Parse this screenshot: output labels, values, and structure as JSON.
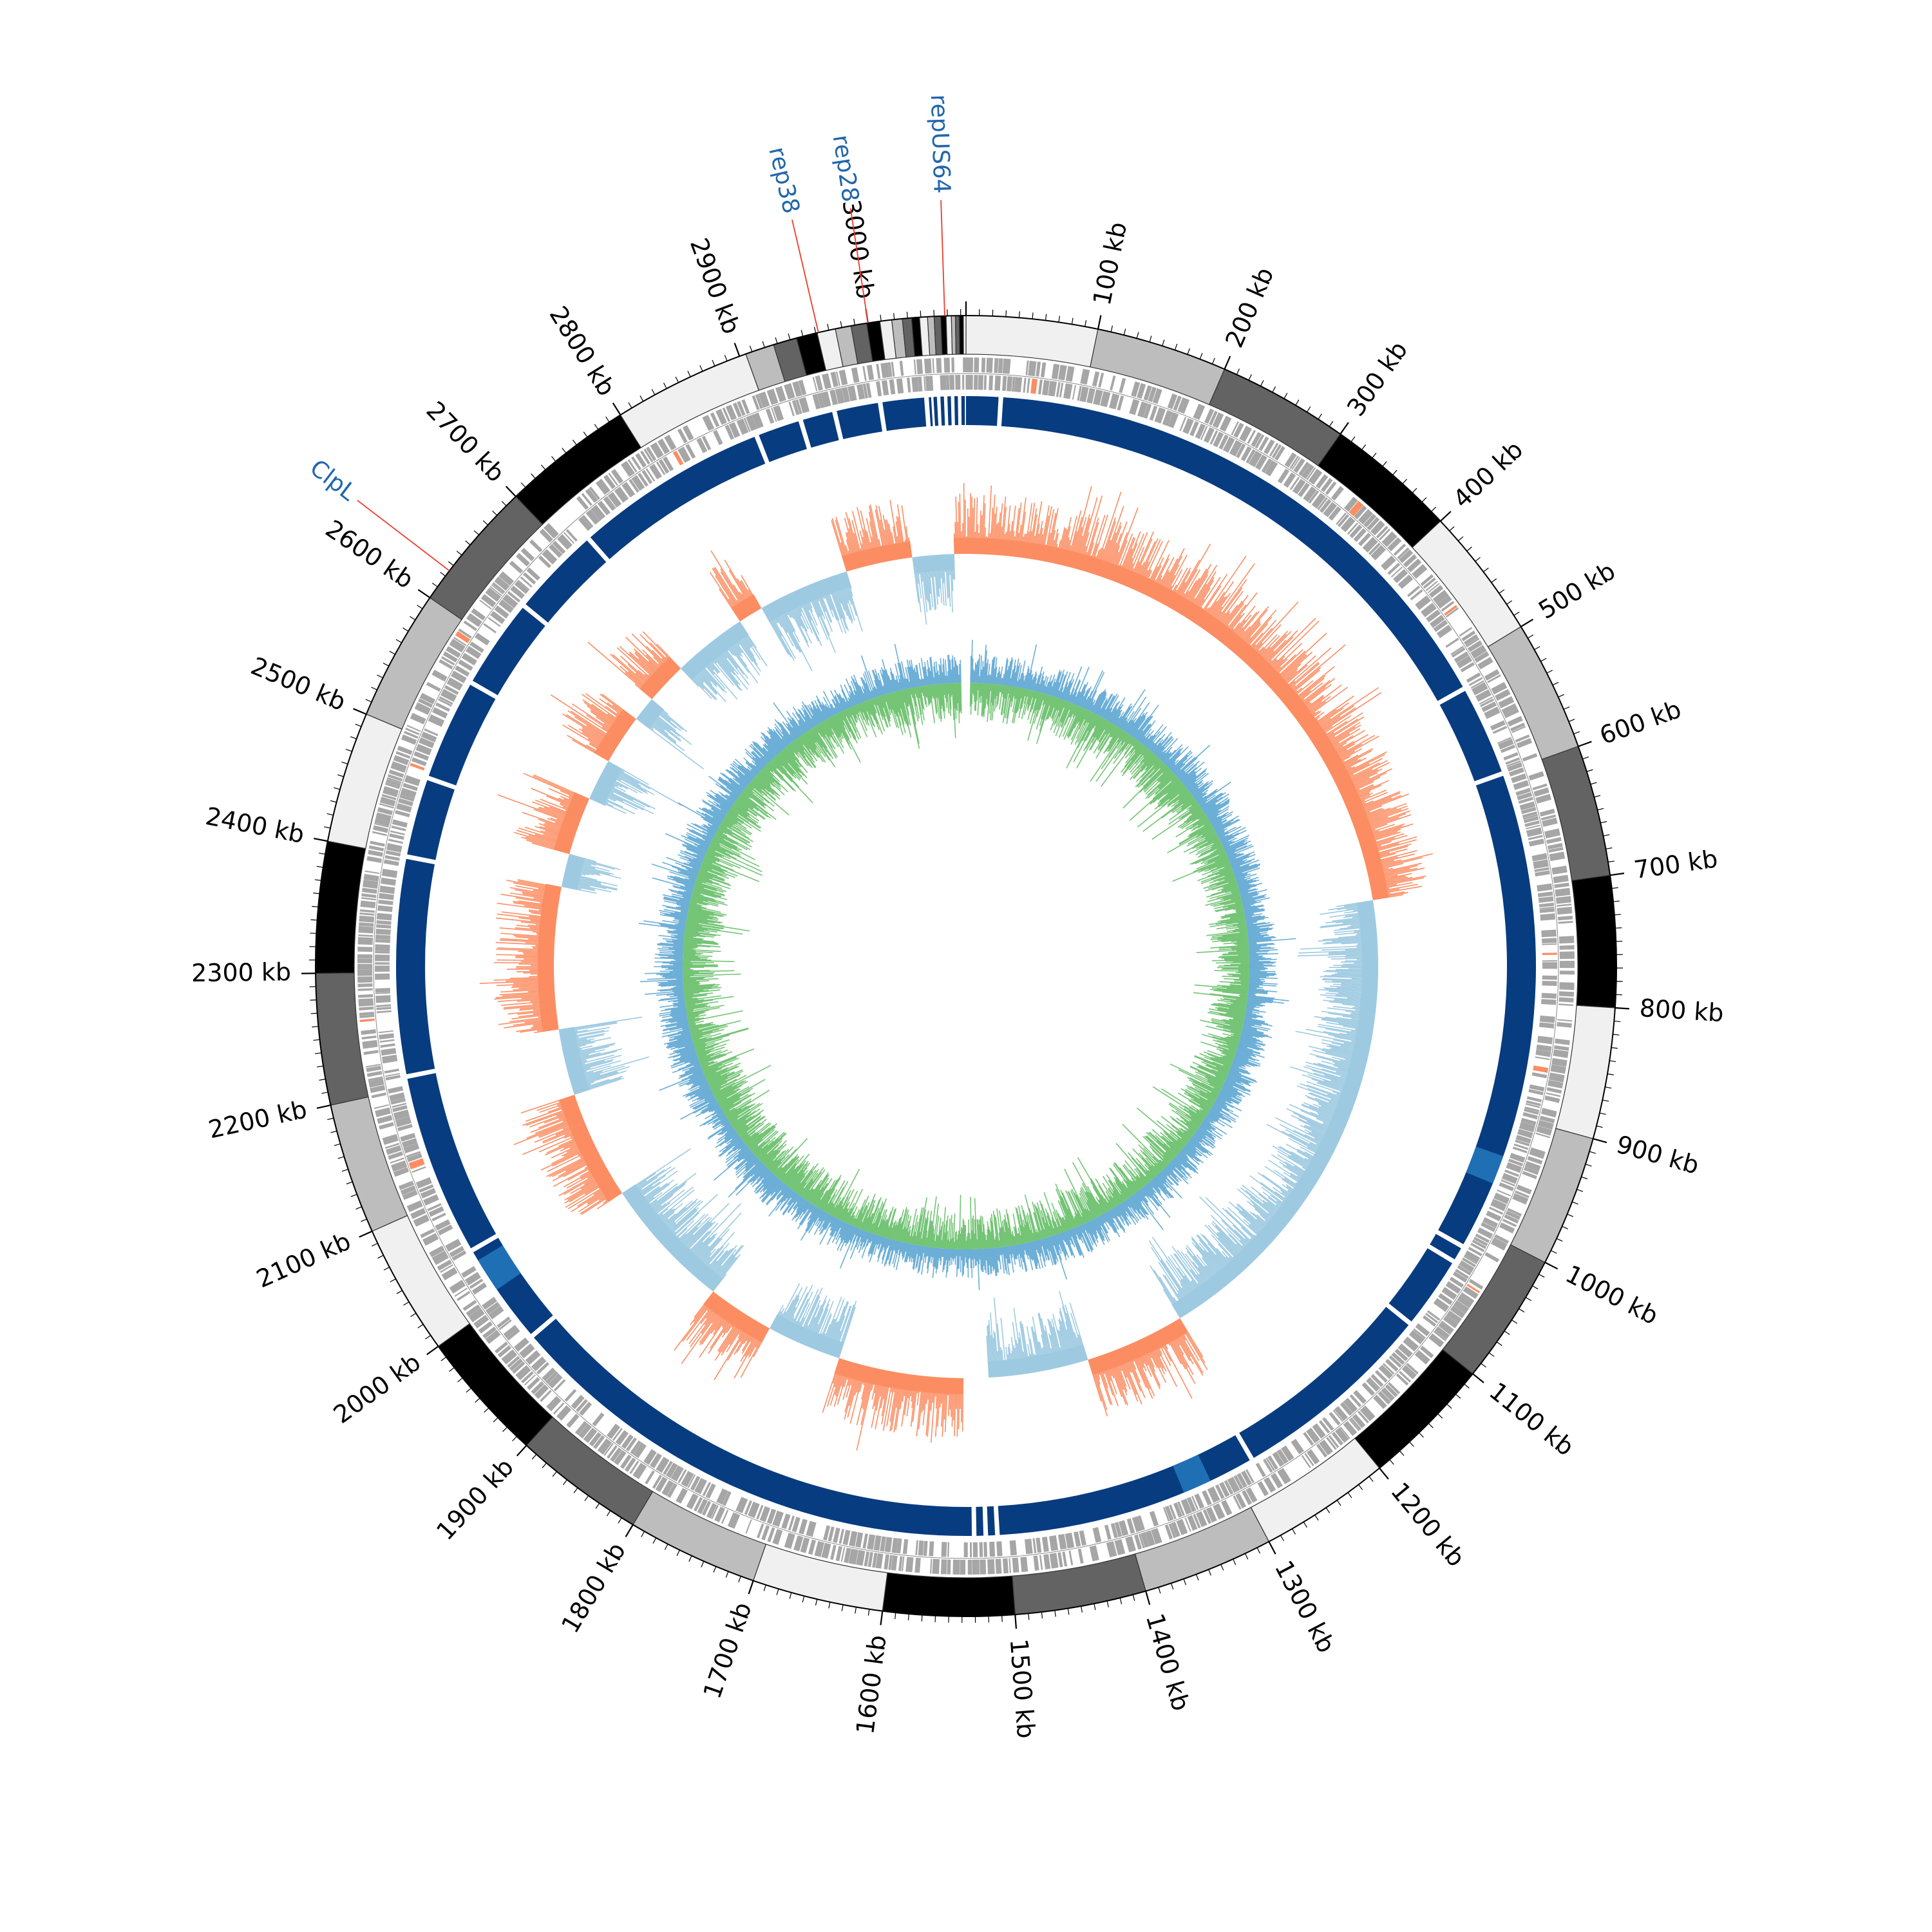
{
  "genome": {
    "length_kb": 3074,
    "tick_interval_kb": 100,
    "tick_unit": "kb"
  },
  "tick_labels": [
    "100 kb",
    "200 kb",
    "300 kb",
    "400 kb",
    "500 kb",
    "600 kb",
    "700 kb",
    "800 kb",
    "900 kb",
    "1000 kb",
    "1100 kb",
    "1200 kb",
    "1300 kb",
    "1400 kb",
    "1500 kb",
    "1600 kb",
    "1700 kb",
    "1800 kb",
    "1900 kb",
    "2000 kb",
    "2100 kb",
    "2200 kb",
    "2300 kb",
    "2400 kb",
    "2500 kb",
    "2600 kb",
    "2700 kb",
    "2800 kb",
    "2900 kb",
    "3000 kb"
  ],
  "gene_labels": [
    {
      "label": "repUS64",
      "position_kb": 3058
    },
    {
      "label": "rep28",
      "position_kb": 3000
    },
    {
      "label": "rep38",
      "position_kb": 2962
    },
    {
      "label": "ClpL",
      "position_kb": 2625
    }
  ],
  "contig_shades": [
    "#f0f0f0",
    "#bdbdbd",
    "#636363",
    "#000000"
  ],
  "colors": {
    "gene_track": "#a6a6a6",
    "gene_highlight": "#fc8d62",
    "contig_track": "#083c80",
    "contig_highlight": "#1f6fb4",
    "skew_positive": "#fc8d62",
    "skew_negative": "#9ecae1",
    "gc_content": "#74c476",
    "gc_blue": "#6baed6",
    "label_line": "#ef3b2c"
  },
  "chart_data": {
    "type": "circular-genome-map",
    "x_unit": "kb",
    "range_kb": [
      0,
      3074
    ],
    "gc_skew_sign_regions_kb": [
      {
        "start": 0,
        "end": 690,
        "sign": "positive"
      },
      {
        "start": 690,
        "end": 1270,
        "sign": "negative"
      },
      {
        "start": 1270,
        "end": 1390,
        "sign": "positive"
      },
      {
        "start": 1390,
        "end": 1510,
        "sign": "negative"
      },
      {
        "start": 1510,
        "end": 1540,
        "sign": "gap"
      },
      {
        "start": 1540,
        "end": 1690,
        "sign": "positive"
      },
      {
        "start": 1690,
        "end": 1780,
        "sign": "negative"
      },
      {
        "start": 1780,
        "end": 1860,
        "sign": "positive"
      },
      {
        "start": 1860,
        "end": 2020,
        "sign": "negative"
      },
      {
        "start": 2020,
        "end": 2150,
        "sign": "positive"
      },
      {
        "start": 2150,
        "end": 2230,
        "sign": "negative"
      },
      {
        "start": 2230,
        "end": 2400,
        "sign": "positive"
      },
      {
        "start": 2400,
        "end": 2440,
        "sign": "negative"
      },
      {
        "start": 2440,
        "end": 2510,
        "sign": "positive"
      },
      {
        "start": 2510,
        "end": 2560,
        "sign": "negative"
      },
      {
        "start": 2560,
        "end": 2620,
        "sign": "positive"
      },
      {
        "start": 2620,
        "end": 2650,
        "sign": "negative"
      },
      {
        "start": 2650,
        "end": 2700,
        "sign": "positive"
      },
      {
        "start": 2700,
        "end": 2790,
        "sign": "negative"
      },
      {
        "start": 2790,
        "end": 2820,
        "sign": "positive"
      },
      {
        "start": 2820,
        "end": 2930,
        "sign": "negative"
      },
      {
        "start": 2930,
        "end": 3010,
        "sign": "positive"
      },
      {
        "start": 3010,
        "end": 3060,
        "sign": "negative"
      },
      {
        "start": 3060,
        "end": 3074,
        "sign": "positive"
      }
    ],
    "contig_track_gaps_kb": [
      30,
      520,
      600,
      1020,
      1035,
      1100,
      1280,
      1510,
      1520,
      1530,
      1960,
      2050,
      2210,
      2400,
      2470,
      2560,
      2640,
      2720,
      2890,
      2930,
      2960,
      3000,
      3040
    ]
  }
}
